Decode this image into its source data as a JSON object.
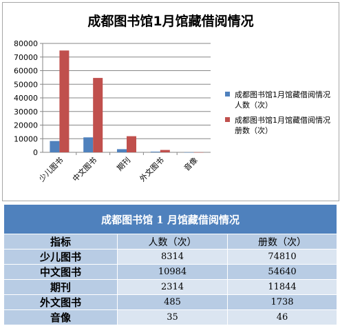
{
  "chart_data": {
    "type": "bar",
    "title": "成都图书馆1月馆藏借阅情况",
    "categories": [
      "少儿图书",
      "中文图书",
      "期刊",
      "外文图书",
      "音像"
    ],
    "series": [
      {
        "name": "成都图书馆1月馆藏借阅情况 人数（次）",
        "color": "#4f81bd",
        "values": [
          8314,
          10984,
          2314,
          485,
          35
        ]
      },
      {
        "name": "成都图书馆1月馆藏借阅情况 册数（次）",
        "color": "#c0504d",
        "values": [
          74810,
          54640,
          11844,
          1738,
          46
        ]
      }
    ],
    "ylim": [
      0,
      80000
    ],
    "yticks": [
      "0",
      "10000",
      "20000",
      "30000",
      "40000",
      "50000",
      "60000",
      "70000",
      "80000"
    ],
    "grid": true,
    "legend": "right"
  },
  "table": {
    "caption": "成都图书馆 1 月馆藏借阅情况",
    "headers": [
      "指标",
      "人数（次）",
      "册数（次）"
    ],
    "rows": [
      [
        "少儿图书",
        "8314",
        "74810"
      ],
      [
        "中文图书",
        "10984",
        "54640"
      ],
      [
        "期刊",
        "2314",
        "11844"
      ],
      [
        "外文图书",
        "485",
        "1738"
      ],
      [
        "音像",
        "35",
        "46"
      ]
    ]
  }
}
